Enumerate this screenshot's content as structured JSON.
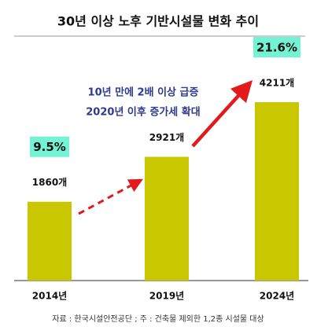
{
  "chart_data": {
    "type": "bar",
    "title": "30년 이상 노후 기반시설물 변화 추이",
    "categories": [
      "2014년",
      "2019년",
      "2024년"
    ],
    "values": [
      1860,
      2921,
      4211
    ],
    "value_labels": [
      "1860개",
      "2921개",
      "4211개"
    ],
    "color": "#c9c700",
    "ylim": [
      0,
      5000
    ],
    "rate_labels": [
      "9.5%",
      "21.6%"
    ],
    "annotations": [
      "10년 만에 2배 이상 급증",
      "2020년 이후 증가세 확대"
    ],
    "source": "자료 : 한국시설안전공단 ; 주 : 건축물 제외한 1,2종 시설물 대상"
  }
}
